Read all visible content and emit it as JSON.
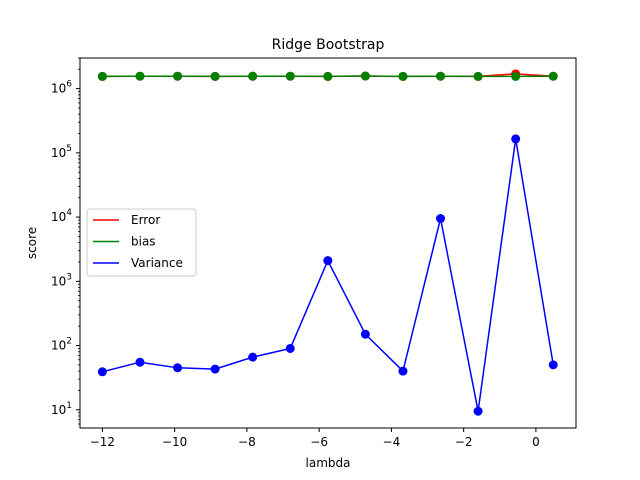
{
  "chart_data": {
    "type": "line",
    "title": "Ridge Bootstrap",
    "xlabel": "lambda",
    "ylabel": "score",
    "yscale": "log",
    "xlim": [
      -12.62,
      1.11
    ],
    "ylim": [
      5.2,
      3000000
    ],
    "grid": false,
    "legend_position": "center-left",
    "x": [
      -12.0,
      -10.96,
      -9.92,
      -8.88,
      -7.84,
      -6.8,
      -5.76,
      -4.72,
      -3.68,
      -2.64,
      -1.6,
      -0.56,
      0.48
    ],
    "series": [
      {
        "name": "Error",
        "color": "#ff0000",
        "values": [
          1550000,
          1560000,
          1560000,
          1550000,
          1560000,
          1560000,
          1550000,
          1570000,
          1550000,
          1560000,
          1550000,
          1700000,
          1560000
        ]
      },
      {
        "name": "bias",
        "color": "#008000",
        "values": [
          1550000,
          1560000,
          1560000,
          1550000,
          1560000,
          1560000,
          1550000,
          1570000,
          1550000,
          1560000,
          1550000,
          1550000,
          1560000
        ]
      },
      {
        "name": "Variance",
        "color": "#0000ff",
        "values": [
          39,
          55,
          45,
          43,
          66,
          90,
          2100,
          150,
          40,
          9500,
          9.5,
          165000,
          50
        ]
      }
    ],
    "x_ticks": [
      {
        "value": -12,
        "label": "−12"
      },
      {
        "value": -10,
        "label": "−10"
      },
      {
        "value": -8,
        "label": "−8"
      },
      {
        "value": -6,
        "label": "−6"
      },
      {
        "value": -4,
        "label": "−4"
      },
      {
        "value": -2,
        "label": "−2"
      },
      {
        "value": 0,
        "label": "0"
      }
    ],
    "y_ticks": [
      {
        "exp": 1,
        "base": "10",
        "sup": "1"
      },
      {
        "exp": 2,
        "base": "10",
        "sup": "2"
      },
      {
        "exp": 3,
        "base": "10",
        "sup": "3"
      },
      {
        "exp": 4,
        "base": "10",
        "sup": "4"
      },
      {
        "exp": 5,
        "base": "10",
        "sup": "5"
      },
      {
        "exp": 6,
        "base": "10",
        "sup": "6"
      }
    ]
  }
}
